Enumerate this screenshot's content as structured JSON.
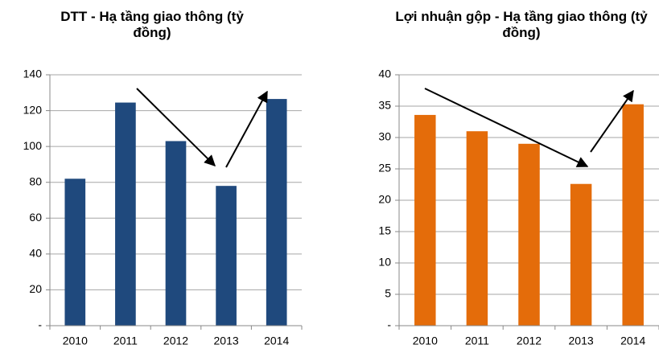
{
  "chart_data": [
    {
      "type": "bar",
      "title": "DTT - Hạ tầng giao thông (tỷ đồng)",
      "categories": [
        "2010",
        "2011",
        "2012",
        "2013",
        "2014"
      ],
      "values": [
        82,
        124.5,
        103,
        78,
        126.5
      ],
      "color": "#1f497d",
      "ylim": [
        0,
        140
      ],
      "yticks": [
        {
          "value": 0,
          "label": "-"
        },
        20,
        40,
        60,
        80,
        100,
        120,
        140
      ],
      "grid": true
    },
    {
      "type": "bar",
      "title": "Lợi nhuận gộp - Hạ tầng giao thông (tỷ đồng)",
      "categories": [
        "2010",
        "2011",
        "2012",
        "2013",
        "2014"
      ],
      "values": [
        33.6,
        31,
        29,
        22.6,
        35.3
      ],
      "color": "#e46c0a",
      "ylim": [
        0,
        40
      ],
      "yticks": [
        {
          "value": 0,
          "label": "-"
        },
        5,
        10,
        15,
        20,
        25,
        30,
        35,
        40
      ],
      "grid": true
    }
  ]
}
